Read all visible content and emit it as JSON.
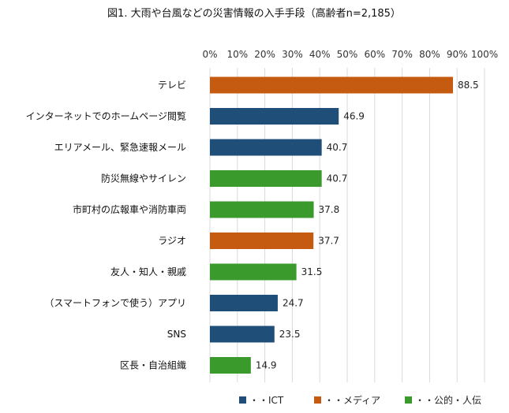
{
  "chart_data": {
    "type": "bar",
    "orientation": "horizontal",
    "title": "図1. 大雨や台風などの災害情報の入手手段（高齢者n=2,185）",
    "x_ticks": [
      "0%",
      "10%",
      "20%",
      "30%",
      "40%",
      "50%",
      "60%",
      "70%",
      "80%",
      "90%",
      "100%"
    ],
    "xlim": [
      0,
      100
    ],
    "xaxis_position": "top",
    "grid": true,
    "legend_position": "bottom-right",
    "groups": [
      {
        "key": "ict",
        "name": "・・ICT",
        "color": "#1f4e79"
      },
      {
        "key": "media",
        "name": "・・メディア",
        "color": "#c55a11"
      },
      {
        "key": "public",
        "name": "・・公的・人伝",
        "color": "#3a9a2b"
      }
    ],
    "categories": [
      "テレビ",
      "インターネットでのホームページ閲覧",
      "エリアメール、緊急速報メール",
      "防災無線やサイレン",
      "市町村の広報車や消防車両",
      "ラジオ",
      "友人・知人・親戚",
      "（スマートフォンで使う）アプリ",
      "SNS",
      "区長・自治組織"
    ],
    "values": [
      88.5,
      46.9,
      40.7,
      40.7,
      37.8,
      37.7,
      31.5,
      24.7,
      23.5,
      14.9
    ],
    "value_labels": [
      "88.5",
      "46.9",
      "40.7",
      "40.7",
      "37.8",
      "37.7",
      "31.5",
      "24.7",
      "23.5",
      "14.9"
    ],
    "groups_per_bar": [
      "media",
      "ict",
      "ict",
      "public",
      "public",
      "media",
      "public",
      "ict",
      "ict",
      "public"
    ]
  }
}
